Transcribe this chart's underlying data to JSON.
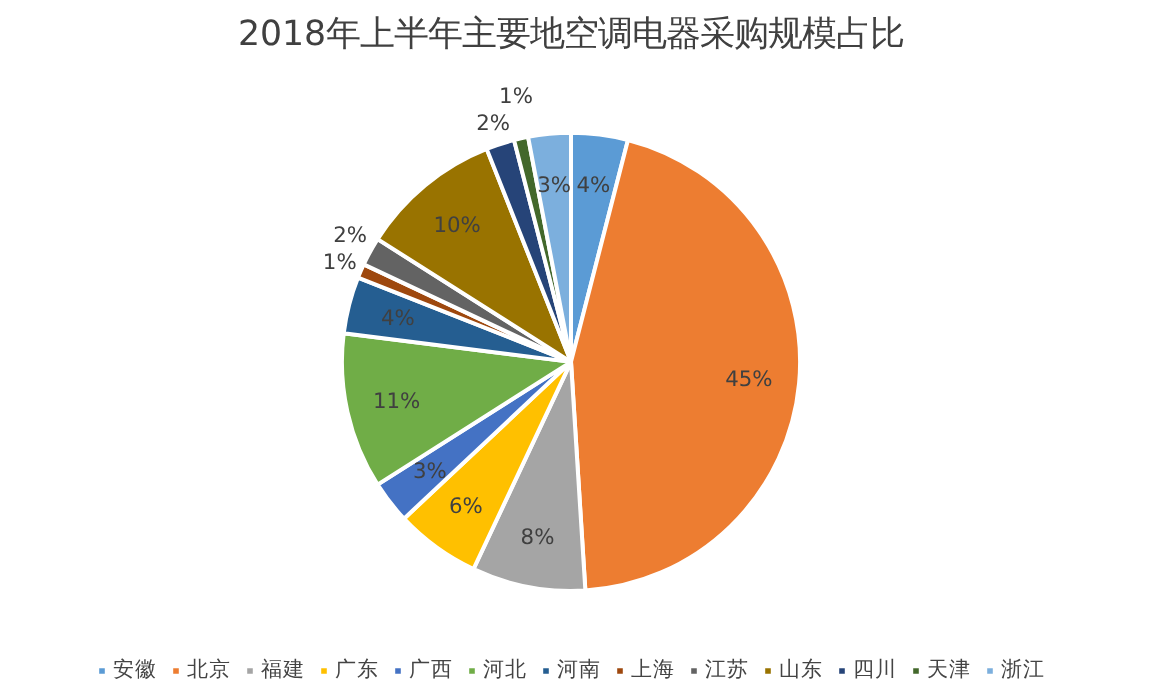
{
  "chart_data": {
    "type": "pie",
    "title": "2018年上半年主要地空调电器采购规模占比",
    "categories": [
      "安徽",
      "北京",
      "福建",
      "广东",
      "广西",
      "河北",
      "河南",
      "上海",
      "江苏",
      "山东",
      "四川",
      "天津",
      "浙江"
    ],
    "values": [
      4,
      45,
      8,
      6,
      3,
      11,
      4,
      1,
      2,
      10,
      2,
      1,
      3
    ],
    "colors": [
      "#5b9bd5",
      "#ed7d31",
      "#a5a5a5",
      "#ffc000",
      "#4472c4",
      "#70ad47",
      "#255e91",
      "#9e480e",
      "#636363",
      "#997300",
      "#264478",
      "#43682b",
      "#7cafdd"
    ],
    "value_labels": [
      "4%",
      "45%",
      "8%",
      "6%",
      "3%",
      "11%",
      "4%",
      "1%",
      "2%",
      "10%",
      "2%",
      "1%",
      "3%"
    ],
    "legend": "bottom"
  }
}
